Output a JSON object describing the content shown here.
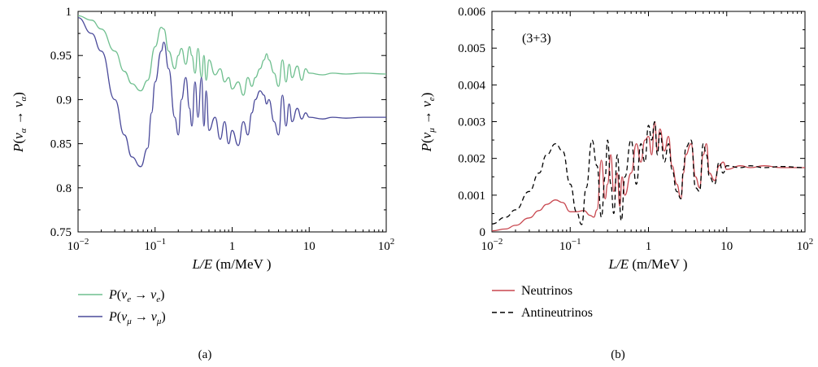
{
  "chart_data": [
    {
      "panel": "(a)",
      "type": "line",
      "xlabel": "L/E (m/MeV )",
      "ylabel": "P(ν_α → ν_α)",
      "x_scale": "log",
      "xlim": [
        0.01,
        100
      ],
      "ylim": [
        0.75,
        1.0
      ],
      "x_ticks": [
        "10^-2",
        "10^-1",
        "1",
        "10",
        "10^2"
      ],
      "y_ticks": [
        "0.75",
        "0.8",
        "0.85",
        "0.9",
        "0.95",
        "1"
      ],
      "legend_placement": "below",
      "series": [
        {
          "name": "P(ν_e → ν_e)",
          "color": "#6fbf8f",
          "x": [
            0.01,
            0.015,
            0.02,
            0.03,
            0.04,
            0.05,
            0.065,
            0.08,
            0.1,
            0.12,
            0.13,
            0.15,
            0.18,
            0.2,
            0.22,
            0.25,
            0.28,
            0.3,
            0.33,
            0.36,
            0.4,
            0.43,
            0.46,
            0.5,
            0.6,
            0.7,
            0.8,
            0.9,
            1.0,
            1.2,
            1.4,
            1.6,
            1.8,
            2.0,
            2.3,
            2.6,
            2.8,
            3.0,
            3.5,
            4.0,
            4.5,
            5.0,
            5.5,
            6.0,
            7.0,
            8.0,
            9.0,
            10,
            15,
            20,
            30,
            50,
            100
          ],
          "y": [
            0.995,
            0.99,
            0.98,
            0.955,
            0.932,
            0.918,
            0.91,
            0.922,
            0.96,
            0.982,
            0.98,
            0.955,
            0.935,
            0.95,
            0.958,
            0.94,
            0.96,
            0.95,
            0.93,
            0.958,
            0.925,
            0.95,
            0.922,
            0.945,
            0.928,
            0.935,
            0.92,
            0.925,
            0.912,
            0.92,
            0.905,
            0.925,
            0.915,
            0.925,
            0.935,
            0.945,
            0.952,
            0.945,
            0.93,
            0.915,
            0.945,
            0.92,
            0.94,
            0.925,
            0.938,
            0.922,
            0.935,
            0.93,
            0.928,
            0.93,
            0.929,
            0.93,
            0.929
          ]
        },
        {
          "name": "P(ν_μ → ν_μ)",
          "color": "#4a4a9a",
          "x": [
            0.01,
            0.015,
            0.02,
            0.03,
            0.04,
            0.05,
            0.065,
            0.08,
            0.09,
            0.1,
            0.12,
            0.13,
            0.15,
            0.18,
            0.2,
            0.22,
            0.25,
            0.28,
            0.3,
            0.33,
            0.36,
            0.4,
            0.43,
            0.46,
            0.5,
            0.6,
            0.7,
            0.8,
            0.9,
            1.0,
            1.2,
            1.4,
            1.6,
            1.8,
            2.0,
            2.3,
            2.6,
            2.8,
            3.0,
            3.5,
            4.0,
            4.5,
            5.0,
            5.5,
            6.0,
            7.0,
            8.0,
            9.0,
            10,
            15,
            20,
            30,
            50,
            100
          ],
          "y": [
            0.993,
            0.975,
            0.955,
            0.9,
            0.86,
            0.835,
            0.824,
            0.845,
            0.885,
            0.92,
            0.955,
            0.965,
            0.935,
            0.88,
            0.86,
            0.9,
            0.925,
            0.89,
            0.87,
            0.92,
            0.88,
            0.925,
            0.87,
            0.91,
            0.865,
            0.88,
            0.855,
            0.875,
            0.85,
            0.865,
            0.848,
            0.875,
            0.86,
            0.885,
            0.9,
            0.91,
            0.905,
            0.895,
            0.9,
            0.875,
            0.86,
            0.905,
            0.87,
            0.895,
            0.875,
            0.89,
            0.878,
            0.885,
            0.88,
            0.878,
            0.88,
            0.879,
            0.88,
            0.88
          ]
        }
      ]
    },
    {
      "panel": "(b)",
      "type": "line",
      "annotation": "(3+3)",
      "xlabel": "L/E (m/MeV )",
      "ylabel": "P(ν_μ → ν_e)",
      "x_scale": "log",
      "xlim": [
        0.01,
        100
      ],
      "ylim": [
        0,
        0.006
      ],
      "x_ticks": [
        "10^-2",
        "10^-1",
        "1",
        "10",
        "10^2"
      ],
      "y_ticks": [
        "0",
        "0.001",
        "0.002",
        "0.003",
        "0.004",
        "0.005",
        "0.006"
      ],
      "legend_placement": "below",
      "series": [
        {
          "name": "Neutrinos",
          "color": "#c8474f",
          "dash": "solid",
          "x": [
            0.01,
            0.015,
            0.02,
            0.03,
            0.04,
            0.05,
            0.065,
            0.08,
            0.1,
            0.12,
            0.15,
            0.18,
            0.2,
            0.22,
            0.25,
            0.28,
            0.3,
            0.33,
            0.36,
            0.4,
            0.43,
            0.46,
            0.5,
            0.6,
            0.7,
            0.8,
            0.9,
            1.0,
            1.1,
            1.2,
            1.3,
            1.4,
            1.6,
            1.8,
            2.0,
            2.3,
            2.6,
            2.8,
            3.0,
            3.5,
            4.0,
            4.5,
            5.0,
            5.5,
            6.0,
            7.0,
            8.0,
            9.0,
            10,
            15,
            20,
            30,
            50,
            100
          ],
          "y": [
            3e-05,
            8e-05,
            0.00018,
            0.00038,
            0.00058,
            0.00075,
            0.00087,
            0.0008,
            0.00055,
            0.00055,
            0.00058,
            0.00045,
            0.0004,
            0.0006,
            0.00195,
            0.0009,
            0.0013,
            0.0021,
            0.0011,
            0.0016,
            0.0007,
            0.0015,
            0.001,
            0.0016,
            0.0024,
            0.0019,
            0.0025,
            0.0026,
            0.0021,
            0.003,
            0.0022,
            0.0028,
            0.0022,
            0.0026,
            0.0018,
            0.0013,
            0.0009,
            0.0016,
            0.0021,
            0.0024,
            0.0015,
            0.0012,
            0.0021,
            0.0024,
            0.0016,
            0.0014,
            0.0018,
            0.0019,
            0.0017,
            0.0018,
            0.00175,
            0.0018,
            0.00175,
            0.00175
          ]
        },
        {
          "name": "Antineutrinos",
          "color": "#000000",
          "dash": "dashed",
          "x": [
            0.01,
            0.015,
            0.02,
            0.03,
            0.04,
            0.05,
            0.065,
            0.08,
            0.1,
            0.12,
            0.14,
            0.16,
            0.19,
            0.22,
            0.25,
            0.28,
            0.3,
            0.33,
            0.36,
            0.4,
            0.45,
            0.5,
            0.6,
            0.7,
            0.8,
            0.9,
            1.0,
            1.1,
            1.2,
            1.3,
            1.4,
            1.6,
            1.8,
            2.0,
            2.3,
            2.6,
            2.8,
            3.0,
            3.5,
            4.0,
            4.5,
            5.0,
            5.5,
            6.0,
            7.0,
            8.0,
            9.0,
            10,
            15,
            20,
            30,
            50,
            100
          ],
          "y": [
            0.00022,
            0.0004,
            0.0006,
            0.0011,
            0.0016,
            0.0021,
            0.0024,
            0.0022,
            0.0013,
            0.00055,
            0.0002,
            0.0012,
            0.0025,
            0.0018,
            0.0004,
            0.0015,
            0.0025,
            0.0013,
            0.0005,
            0.0021,
            0.0003,
            0.0015,
            0.0025,
            0.0013,
            0.0024,
            0.0019,
            0.0029,
            0.0025,
            0.003,
            0.0021,
            0.0027,
            0.0019,
            0.0024,
            0.0017,
            0.0011,
            0.0009,
            0.0017,
            0.0023,
            0.0025,
            0.0012,
            0.0011,
            0.0024,
            0.0021,
            0.0015,
            0.0013,
            0.0019,
            0.0016,
            0.0018,
            0.00175,
            0.0018,
            0.00175,
            0.00178,
            0.00175
          ]
        }
      ]
    }
  ]
}
